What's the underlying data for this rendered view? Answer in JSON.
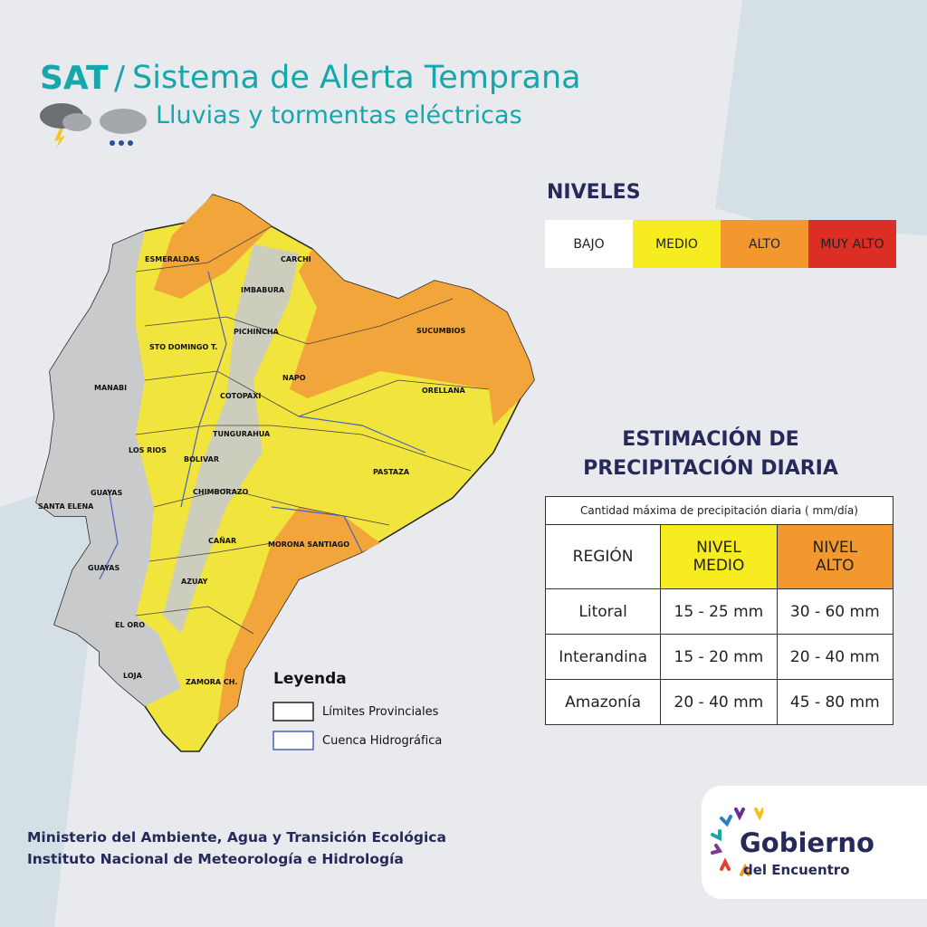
{
  "header": {
    "acronym": "SAT",
    "separator": "/",
    "title": "Sistema de Alerta Temprana",
    "subtitle": "Lluvias y tormentas eléctricas"
  },
  "levels": {
    "title": "NIVELES",
    "items": [
      "BAJO",
      "MEDIO",
      "ALTO",
      "MUY ALTO"
    ]
  },
  "estimate": {
    "title": [
      "ESTIMACIÓN DE",
      "PRECIPITACIÓN DIARIA"
    ],
    "table": {
      "caption": "Cantidad máxima de precipitación diaria ( mm/día)",
      "headers": [
        [
          "REGIÓN"
        ],
        [
          "NIVEL",
          "MEDIO"
        ],
        [
          "NIVEL",
          "ALTO"
        ]
      ],
      "rows": [
        [
          "Litoral",
          "15 - 25 mm",
          "30 - 60 mm"
        ],
        [
          "Interandina",
          "15 - 20 mm",
          "20 - 40 mm"
        ],
        [
          "Amazonía",
          "20 - 40 mm",
          "45 - 80 mm"
        ]
      ]
    }
  },
  "map": {
    "provinces": [
      "ESMERALDAS",
      "CARCHI",
      "IMBABURA",
      "PICHINCHA",
      "STO DOMINGO T.",
      "SUCUMBIOS",
      "MANABI",
      "NAPO",
      "ORELLANA",
      "COTOPAXI",
      "TUNGURAHUA",
      "LOS RIOS",
      "BOLIVAR",
      "PASTAZA",
      "GUAYAS",
      "SANTA ELENA",
      "CHIMBORAZO",
      "MORONA SANTIAGO",
      "CAÑAR",
      "GUAYAS",
      "AZUAY",
      "EL ORO",
      "LOJA",
      "ZAMORA CH."
    ]
  },
  "legend": {
    "title": "Leyenda",
    "items": [
      "Límites Provinciales",
      "Cuenca Hidrográfica"
    ]
  },
  "footer": [
    "Ministerio del Ambiente, Agua y Transición Ecológica",
    "Instituto Nacional de Meteorología e Hidrología"
  ],
  "logo": {
    "main": "Gobierno",
    "sub": "del Encuentro"
  }
}
